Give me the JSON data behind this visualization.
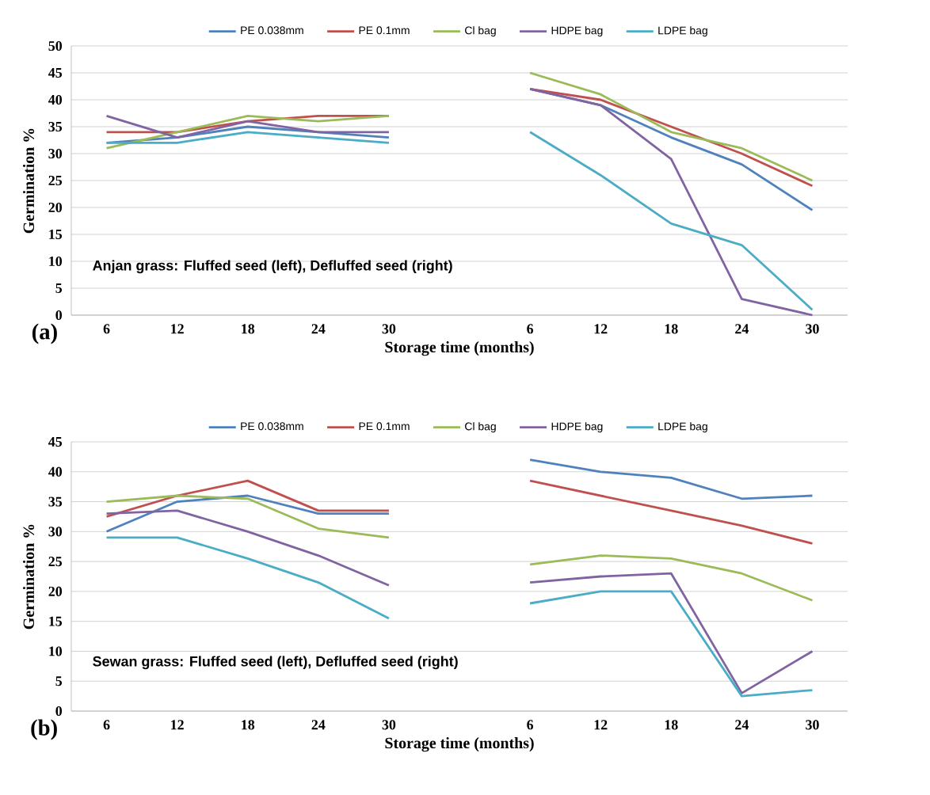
{
  "chart_data": [
    {
      "type": "line",
      "title": "(a)",
      "xlabel": "Storage time (months)",
      "ylabel": "Germination %",
      "categories": [
        "6",
        "12",
        "18",
        "24",
        "30",
        null,
        "6",
        "12",
        "18",
        "24",
        "30"
      ],
      "ylim": [
        0,
        50
      ],
      "yticks": [
        0,
        5,
        10,
        15,
        20,
        25,
        30,
        35,
        40,
        45,
        50
      ],
      "grid": "y",
      "legend": "top",
      "annotations": [
        "Anjan grass: Fluffed seed (left), Defluffed seed (right)"
      ],
      "series": [
        {
          "name": "PE 0.038mm",
          "color": "#4f81bd",
          "values": [
            32,
            33,
            35,
            34,
            33,
            null,
            42,
            39,
            33,
            28,
            19.5
          ]
        },
        {
          "name": "PE 0.1mm",
          "color": "#c0504d",
          "values": [
            34,
            34,
            36,
            37,
            37,
            null,
            42,
            40,
            35,
            30,
            24
          ]
        },
        {
          "name": "Cl bag",
          "color": "#9bbb59",
          "values": [
            31,
            34,
            37,
            36,
            37,
            null,
            45,
            41,
            34,
            31,
            25
          ]
        },
        {
          "name": "HDPE bag",
          "color": "#8064a2",
          "values": [
            37,
            33,
            36,
            34,
            34,
            null,
            42,
            39,
            29,
            3,
            0
          ]
        },
        {
          "name": "LDPE bag",
          "color": "#4bacc6",
          "values": [
            32,
            32,
            34,
            33,
            32,
            null,
            34,
            26,
            17,
            13,
            1
          ]
        }
      ]
    },
    {
      "type": "line",
      "title": "(b)",
      "xlabel": "Storage time (months)",
      "ylabel": "Germination %",
      "categories": [
        "6",
        "12",
        "18",
        "24",
        "30",
        null,
        "6",
        "12",
        "18",
        "24",
        "30"
      ],
      "ylim": [
        0,
        45
      ],
      "yticks": [
        0,
        5,
        10,
        15,
        20,
        25,
        30,
        35,
        40,
        45
      ],
      "grid": "y",
      "legend": "top",
      "annotations": [
        "Sewan grass: Fluffed seed (left), Defluffed seed (right)"
      ],
      "series": [
        {
          "name": "PE 0.038mm",
          "color": "#4f81bd",
          "values": [
            30,
            35,
            36,
            33,
            33,
            null,
            42,
            40,
            39,
            35.5,
            36
          ]
        },
        {
          "name": "PE 0.1mm",
          "color": "#c0504d",
          "values": [
            32.5,
            36,
            38.5,
            33.5,
            33.5,
            null,
            38.5,
            36,
            33.5,
            31,
            28
          ]
        },
        {
          "name": "Cl bag",
          "color": "#9bbb59",
          "values": [
            35,
            36,
            35.5,
            30.5,
            29,
            null,
            24.5,
            26,
            25.5,
            23,
            18.5
          ]
        },
        {
          "name": "HDPE bag",
          "color": "#8064a2",
          "values": [
            33,
            33.5,
            30,
            26,
            21,
            null,
            21.5,
            22.5,
            23,
            3,
            10
          ]
        },
        {
          "name": "LDPE bag",
          "color": "#4bacc6",
          "values": [
            29,
            29,
            25.5,
            21.5,
            15.5,
            null,
            18,
            20,
            20,
            2.5,
            3.5
          ]
        }
      ]
    }
  ]
}
